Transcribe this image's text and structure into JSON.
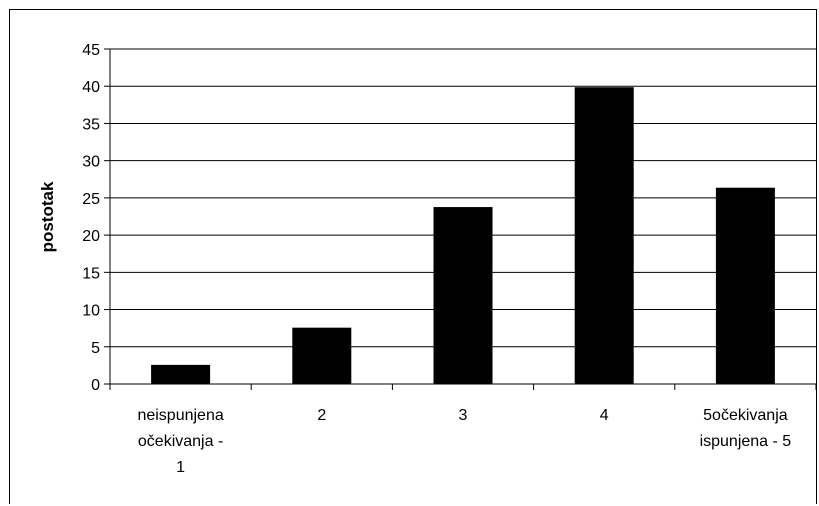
{
  "chart_data": {
    "type": "bar",
    "title": "",
    "xlabel": "",
    "ylabel": "postotak",
    "categories": [
      [
        "neispunjena",
        "očekivanja -",
        "1"
      ],
      [
        "2"
      ],
      [
        "3"
      ],
      [
        "4"
      ],
      [
        "5očekivanja",
        "ispunjena - 5"
      ]
    ],
    "values": [
      2.5,
      7.5,
      23.7,
      39.8,
      26.3
    ],
    "ylim": [
      0,
      45
    ],
    "yticks": [
      0,
      5,
      10,
      15,
      20,
      25,
      30,
      35,
      40,
      45
    ],
    "grid": true,
    "legend": "none",
    "bar_color": "#000000"
  }
}
